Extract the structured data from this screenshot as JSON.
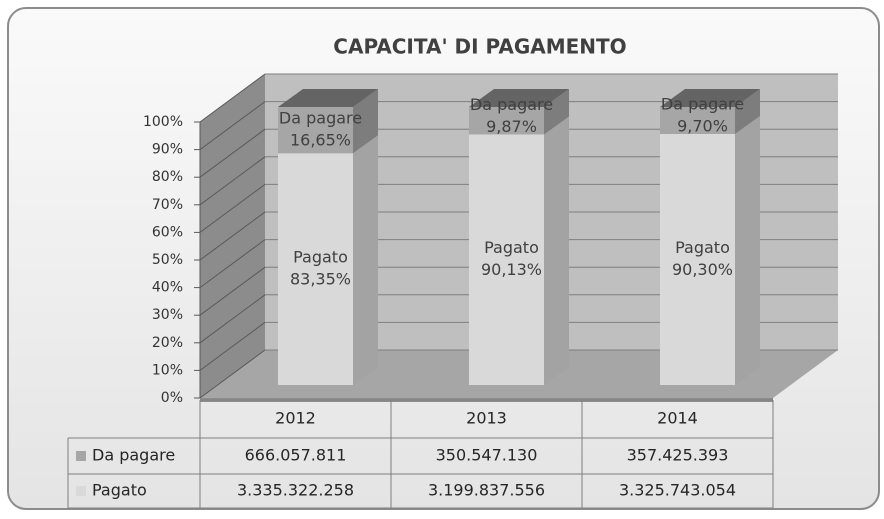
{
  "chart_data": {
    "type": "bar3d_stacked",
    "title": "CAPACITA' DI PAGAMENTO",
    "categories": [
      "2012",
      "2013",
      "2014"
    ],
    "series": [
      {
        "name": "Pagato",
        "color": "#d9d9d9",
        "values": [
          83.35,
          90.13,
          90.3
        ],
        "value_labels": [
          "83,35%",
          "90,13%",
          "90,30%"
        ]
      },
      {
        "name": "Da pagare",
        "color": "#a6a6a6",
        "values": [
          16.65,
          9.87,
          9.7
        ],
        "value_labels": [
          "16,65%",
          "9,87%",
          "9,70%"
        ]
      }
    ],
    "ylim": [
      0,
      100
    ],
    "yticks": [
      {
        "value": 0,
        "label": "0%"
      },
      {
        "value": 10,
        "label": "10%"
      },
      {
        "value": 20,
        "label": "20%"
      },
      {
        "value": 30,
        "label": "30%"
      },
      {
        "value": 40,
        "label": "40%"
      },
      {
        "value": 50,
        "label": "50%"
      },
      {
        "value": 60,
        "label": "60%"
      },
      {
        "value": 70,
        "label": "70%"
      },
      {
        "value": 80,
        "label": "80%"
      },
      {
        "value": 90,
        "label": "90%"
      },
      {
        "value": 100,
        "label": "100%"
      }
    ],
    "grid": true,
    "data_table": {
      "rows": [
        {
          "name": "Da pagare",
          "color": "#a6a6a6",
          "values": [
            "666.057.811",
            "350.547.130",
            "357.425.393"
          ]
        },
        {
          "name": "Pagato",
          "color": "#d9d9d9",
          "values": [
            "3.335.322.258",
            "3.199.837.556",
            "3.325.743.054"
          ]
        }
      ]
    }
  }
}
